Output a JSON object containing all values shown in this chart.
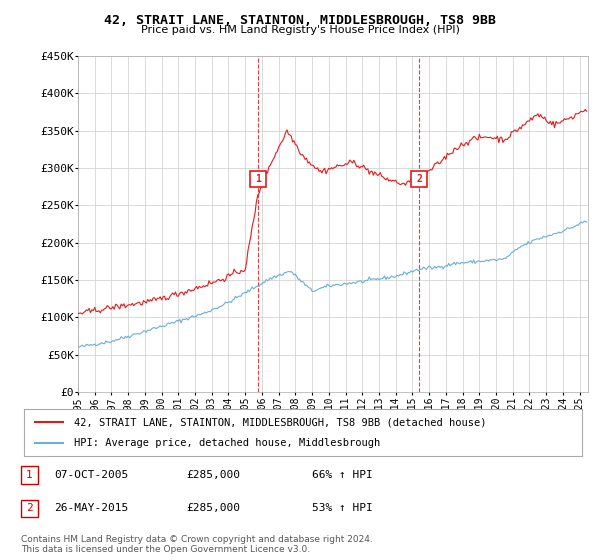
{
  "title_line1": "42, STRAIT LANE, STAINTON, MIDDLESBROUGH, TS8 9BB",
  "title_line2": "Price paid vs. HM Land Registry's House Price Index (HPI)",
  "ylabel_ticks": [
    "£0",
    "£50K",
    "£100K",
    "£150K",
    "£200K",
    "£250K",
    "£300K",
    "£350K",
    "£400K",
    "£450K"
  ],
  "ylabel_values": [
    0,
    50000,
    100000,
    150000,
    200000,
    250000,
    300000,
    350000,
    400000,
    450000
  ],
  "ylim": [
    0,
    450000
  ],
  "xlim_start": 1995.0,
  "xlim_end": 2025.5,
  "xtick_years": [
    1995,
    1996,
    1997,
    1998,
    1999,
    2000,
    2001,
    2002,
    2003,
    2004,
    2005,
    2006,
    2007,
    2008,
    2009,
    2010,
    2011,
    2012,
    2013,
    2014,
    2015,
    2016,
    2017,
    2018,
    2019,
    2020,
    2021,
    2022,
    2023,
    2024,
    2025
  ],
  "hpi_color": "#6baed6",
  "price_color": "#e31a1c",
  "marker1_x": 2005.77,
  "marker1_y": 285000,
  "marker2_x": 2015.4,
  "marker2_y": 285000,
  "marker1_label": "1",
  "marker2_label": "2",
  "vline1_x": 2005.77,
  "vline2_x": 2015.4,
  "vline_color": "#e31a1c",
  "grid_color": "#cccccc",
  "background_color": "#ffffff",
  "legend_label_red": "42, STRAIT LANE, STAINTON, MIDDLESBROUGH, TS8 9BB (detached house)",
  "legend_label_blue": "HPI: Average price, detached house, Middlesbrough",
  "annotation1_num": "1",
  "annotation1_date": "07-OCT-2005",
  "annotation1_price": "£285,000",
  "annotation1_hpi": "66% ↑ HPI",
  "annotation2_num": "2",
  "annotation2_date": "26-MAY-2015",
  "annotation2_price": "£285,000",
  "annotation2_hpi": "53% ↑ HPI",
  "footnote_line1": "Contains HM Land Registry data © Crown copyright and database right 2024.",
  "footnote_line2": "This data is licensed under the Open Government Licence v3.0.",
  "fig_width": 6.0,
  "fig_height": 5.6,
  "dpi": 100
}
